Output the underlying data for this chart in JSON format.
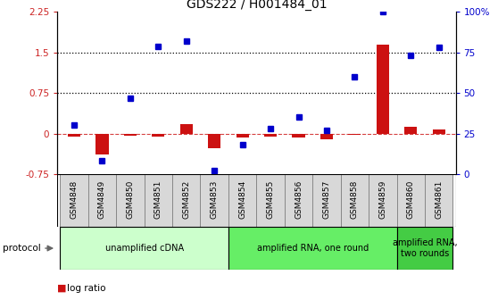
{
  "title": "GDS222 / H001484_01",
  "samples": [
    "GSM4848",
    "GSM4849",
    "GSM4850",
    "GSM4851",
    "GSM4852",
    "GSM4853",
    "GSM4854",
    "GSM4855",
    "GSM4856",
    "GSM4857",
    "GSM4858",
    "GSM4859",
    "GSM4860",
    "GSM4861"
  ],
  "log_ratio": [
    -0.05,
    -0.38,
    -0.04,
    -0.06,
    0.18,
    -0.28,
    -0.08,
    -0.05,
    -0.07,
    -0.1,
    -0.02,
    1.65,
    0.12,
    0.08
  ],
  "percentile": [
    30,
    8,
    47,
    79,
    82,
    2,
    18,
    28,
    35,
    27,
    60,
    100,
    73,
    78
  ],
  "bar_color": "#cc1111",
  "marker_color": "#0000cc",
  "ylim_left": [
    -0.75,
    2.25
  ],
  "ylim_right": [
    0,
    100
  ],
  "yticks_left": [
    -0.75,
    0.0,
    0.75,
    1.5,
    2.25
  ],
  "yticks_right": [
    0,
    25,
    50,
    75,
    100
  ],
  "ytick_labels_left": [
    "-0.75",
    "0",
    "0.75",
    "1.5",
    "2.25"
  ],
  "ytick_labels_right": [
    "0",
    "25",
    "50",
    "75",
    "100%"
  ],
  "hlines": [
    0.75,
    1.5
  ],
  "protocol_groups": [
    {
      "label": "unamplified cDNA",
      "start": 0,
      "end": 5,
      "color": "#ccffcc"
    },
    {
      "label": "amplified RNA, one round",
      "start": 6,
      "end": 11,
      "color": "#66ee66"
    },
    {
      "label": "amplified RNA,\ntwo rounds",
      "start": 12,
      "end": 13,
      "color": "#44cc44"
    }
  ],
  "protocol_label": "protocol",
  "bar_width": 0.45,
  "marker_size": 5,
  "title_fontsize": 10,
  "tick_fontsize": 7.5,
  "left_tick_color": "#cc2222",
  "right_tick_color": "#0000cc",
  "sample_box_color": "#d8d8d8",
  "sample_fontsize": 6.5
}
